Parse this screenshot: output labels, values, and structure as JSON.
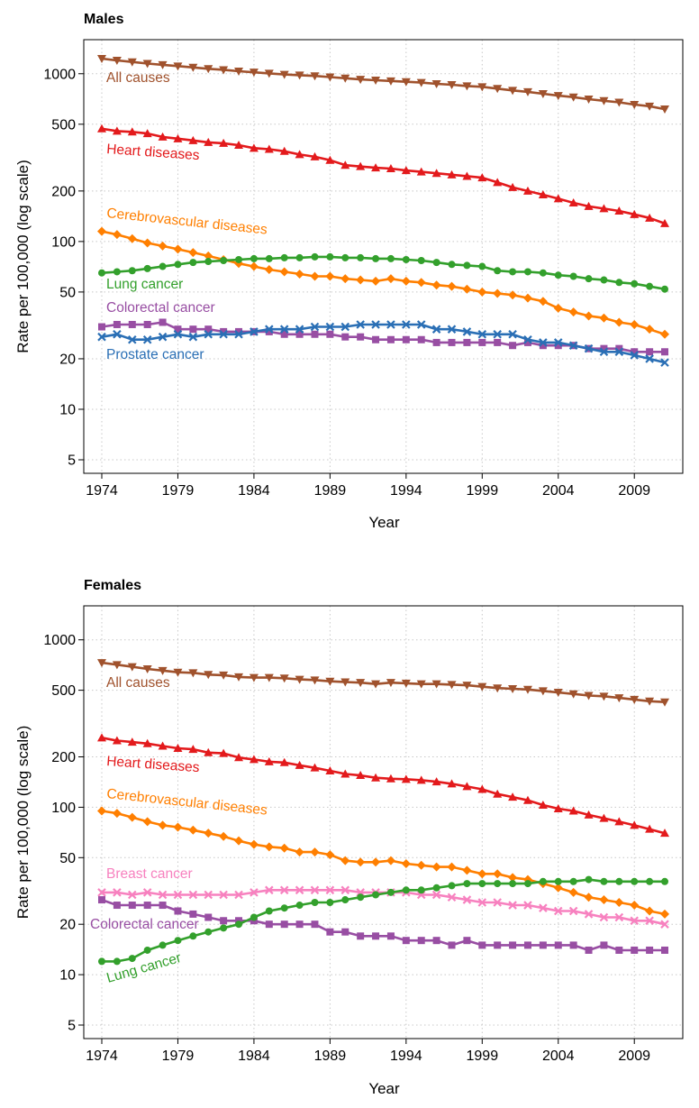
{
  "years": [
    1974,
    1975,
    1976,
    1977,
    1978,
    1979,
    1980,
    1981,
    1982,
    1983,
    1984,
    1985,
    1986,
    1987,
    1988,
    1989,
    1990,
    1991,
    1992,
    1993,
    1994,
    1995,
    1996,
    1997,
    1998,
    1999,
    2000,
    2001,
    2002,
    2003,
    2004,
    2005,
    2006,
    2007,
    2008,
    2009,
    2010,
    2011
  ],
  "chart_data": [
    {
      "type": "line",
      "title": "Males",
      "xlabel": "Year",
      "ylabel": "Rate per 100,000 (log scale)",
      "yscale": "log",
      "xlim": [
        1973,
        2012
      ],
      "ylim": [
        5,
        1500
      ],
      "xticks": [
        "1974",
        "1979",
        "1984",
        "1989",
        "1994",
        "1999",
        "2004",
        "2009"
      ],
      "yticks": [
        "5",
        "10",
        "20",
        "50",
        "100",
        "200",
        "500",
        "1000"
      ],
      "grid": true,
      "series": [
        {
          "name": "All causes",
          "color": "#A0522D",
          "marker": "triangle-down",
          "values": [
            1230,
            1200,
            1175,
            1150,
            1130,
            1110,
            1090,
            1070,
            1055,
            1035,
            1020,
            1005,
            990,
            980,
            970,
            955,
            940,
            925,
            915,
            905,
            895,
            885,
            870,
            860,
            845,
            835,
            815,
            795,
            780,
            760,
            740,
            725,
            705,
            690,
            675,
            655,
            640,
            615
          ]
        },
        {
          "name": "Heart diseases",
          "color": "#E31A1C",
          "marker": "triangle-up",
          "values": [
            470,
            455,
            450,
            440,
            420,
            410,
            400,
            390,
            385,
            375,
            360,
            355,
            345,
            330,
            320,
            305,
            285,
            280,
            275,
            272,
            265,
            260,
            255,
            250,
            245,
            240,
            225,
            210,
            200,
            190,
            180,
            170,
            162,
            157,
            152,
            145,
            138,
            128
          ]
        },
        {
          "name": "Cerebrovascular diseases",
          "color": "#FF7F00",
          "marker": "diamond",
          "values": [
            115,
            110,
            104,
            98,
            94,
            90,
            86,
            82,
            78,
            74,
            71,
            68,
            66,
            64,
            62,
            62,
            60,
            59,
            58,
            60,
            58,
            57,
            55,
            54,
            52,
            50,
            49,
            48,
            46,
            44,
            40,
            38,
            36,
            35,
            33,
            32,
            30,
            28
          ]
        },
        {
          "name": "Lung cancer",
          "color": "#33A02C",
          "marker": "circle",
          "values": [
            65,
            66,
            67,
            69,
            71,
            73,
            75,
            76,
            77,
            78,
            79,
            79,
            80,
            80,
            81,
            81,
            80,
            80,
            79,
            79,
            78,
            77,
            75,
            73,
            72,
            71,
            67,
            66,
            66,
            65,
            63,
            62,
            60,
            59,
            57,
            56,
            54,
            52
          ]
        },
        {
          "name": "Colorectal cancer",
          "color": "#984EA3",
          "marker": "square",
          "values": [
            31,
            32,
            32,
            32,
            33,
            30,
            30,
            30,
            29,
            29,
            29,
            29,
            28,
            28,
            28,
            28,
            27,
            27,
            26,
            26,
            26,
            26,
            25,
            25,
            25,
            25,
            25,
            24,
            25,
            24,
            24,
            24,
            23,
            23,
            23,
            22,
            22,
            22
          ]
        },
        {
          "name": "Prostate cancer",
          "color": "#2A6FB5",
          "marker": "x",
          "values": [
            27,
            28,
            26,
            26,
            27,
            28,
            27,
            28,
            28,
            28,
            29,
            30,
            30,
            30,
            31,
            31,
            31,
            32,
            32,
            32,
            32,
            32,
            30,
            30,
            29,
            28,
            28,
            28,
            26,
            25,
            25,
            24,
            23,
            22,
            22,
            21,
            20,
            19
          ]
        }
      ]
    },
    {
      "type": "line",
      "title": "Females",
      "xlabel": "Year",
      "ylabel": "Rate per 100,000 (log scale)",
      "yscale": "log",
      "xlim": [
        1973,
        2012
      ],
      "ylim": [
        5,
        1500
      ],
      "xticks": [
        "1974",
        "1979",
        "1984",
        "1989",
        "1994",
        "1999",
        "2004",
        "2009"
      ],
      "yticks": [
        "5",
        "10",
        "20",
        "50",
        "100",
        "200",
        "500",
        "1000"
      ],
      "grid": true,
      "series": [
        {
          "name": "All causes",
          "color": "#A0522D",
          "marker": "triangle-down",
          "values": [
            730,
            710,
            690,
            670,
            655,
            640,
            635,
            620,
            615,
            600,
            595,
            595,
            590,
            580,
            575,
            565,
            560,
            555,
            545,
            555,
            550,
            545,
            545,
            540,
            535,
            525,
            515,
            510,
            505,
            495,
            485,
            475,
            465,
            460,
            450,
            440,
            430,
            425
          ]
        },
        {
          "name": "Heart diseases",
          "color": "#E31A1C",
          "marker": "triangle-up",
          "values": [
            260,
            250,
            245,
            240,
            232,
            225,
            222,
            212,
            210,
            198,
            193,
            187,
            185,
            178,
            172,
            165,
            158,
            155,
            150,
            148,
            147,
            145,
            142,
            138,
            133,
            128,
            120,
            115,
            110,
            103,
            98,
            95,
            90,
            86,
            82,
            78,
            74,
            70
          ]
        },
        {
          "name": "Cerebrovascular diseases",
          "color": "#FF7F00",
          "marker": "diamond",
          "values": [
            95,
            92,
            87,
            82,
            78,
            76,
            73,
            70,
            67,
            63,
            60,
            58,
            57,
            54,
            54,
            52,
            48,
            47,
            47,
            48,
            46,
            45,
            44,
            44,
            42,
            40,
            40,
            38,
            37,
            35,
            33,
            31,
            29,
            28,
            27,
            26,
            24,
            23
          ]
        },
        {
          "name": "Breast cancer",
          "color": "#F781BF",
          "marker": "x",
          "values": [
            31,
            31,
            30,
            31,
            30,
            30,
            30,
            30,
            30,
            30,
            31,
            32,
            32,
            32,
            32,
            32,
            32,
            31,
            31,
            31,
            31,
            30,
            30,
            29,
            28,
            27,
            27,
            26,
            26,
            25,
            24,
            24,
            23,
            22,
            22,
            21,
            21,
            20
          ]
        },
        {
          "name": "Colorectal cancer",
          "color": "#984EA3",
          "marker": "square",
          "values": [
            28,
            26,
            26,
            26,
            26,
            24,
            23,
            22,
            21,
            21,
            21,
            20,
            20,
            20,
            20,
            18,
            18,
            17,
            17,
            17,
            16,
            16,
            16,
            15,
            16,
            15,
            15,
            15,
            15,
            15,
            15,
            15,
            14,
            15,
            14,
            14,
            14,
            14
          ]
        },
        {
          "name": "Lung cancer",
          "color": "#33A02C",
          "marker": "circle",
          "values": [
            12,
            12,
            12.5,
            14,
            15,
            16,
            17,
            18,
            19,
            20,
            22,
            24,
            25,
            26,
            27,
            27,
            28,
            29,
            30,
            31,
            32,
            32,
            33,
            34,
            35,
            35,
            35,
            35,
            35,
            36,
            36,
            36,
            37,
            36,
            36,
            36,
            36,
            36
          ]
        }
      ]
    }
  ],
  "labels": {
    "males": [
      "All causes",
      "Heart diseases",
      "Cerebrovascular diseases",
      "Lung cancer",
      "Colorectal cancer",
      "Prostate cancer"
    ],
    "females": [
      "All causes",
      "Heart diseases",
      "Cerebrovascular diseases",
      "Breast cancer",
      "Colorectal cancer",
      "Lung cancer"
    ]
  }
}
